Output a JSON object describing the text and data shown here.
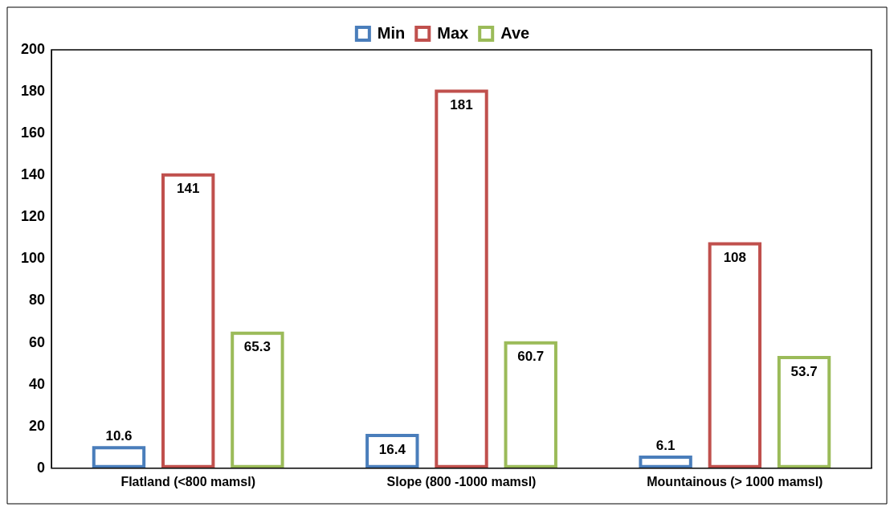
{
  "chart_data": {
    "type": "bar",
    "categories": [
      "Flatland (<800 mamsl)",
      "Slope (800 -1000 mamsl)",
      "Mountainous (> 1000 mamsl)"
    ],
    "series": [
      {
        "name": "Min",
        "color": "#4a7ebb",
        "values": [
          10.6,
          16.4,
          6.1
        ]
      },
      {
        "name": "Max",
        "color": "#c0504d",
        "values": [
          141,
          181,
          108
        ]
      },
      {
        "name": "Ave",
        "color": "#9bbb59",
        "values": [
          65.3,
          60.7,
          53.7
        ]
      }
    ],
    "ylim": [
      0,
      200
    ],
    "yticks": [
      0,
      20,
      40,
      60,
      80,
      100,
      120,
      140,
      160,
      180,
      200
    ],
    "grid": false,
    "legend": "top",
    "data_labels": true
  }
}
